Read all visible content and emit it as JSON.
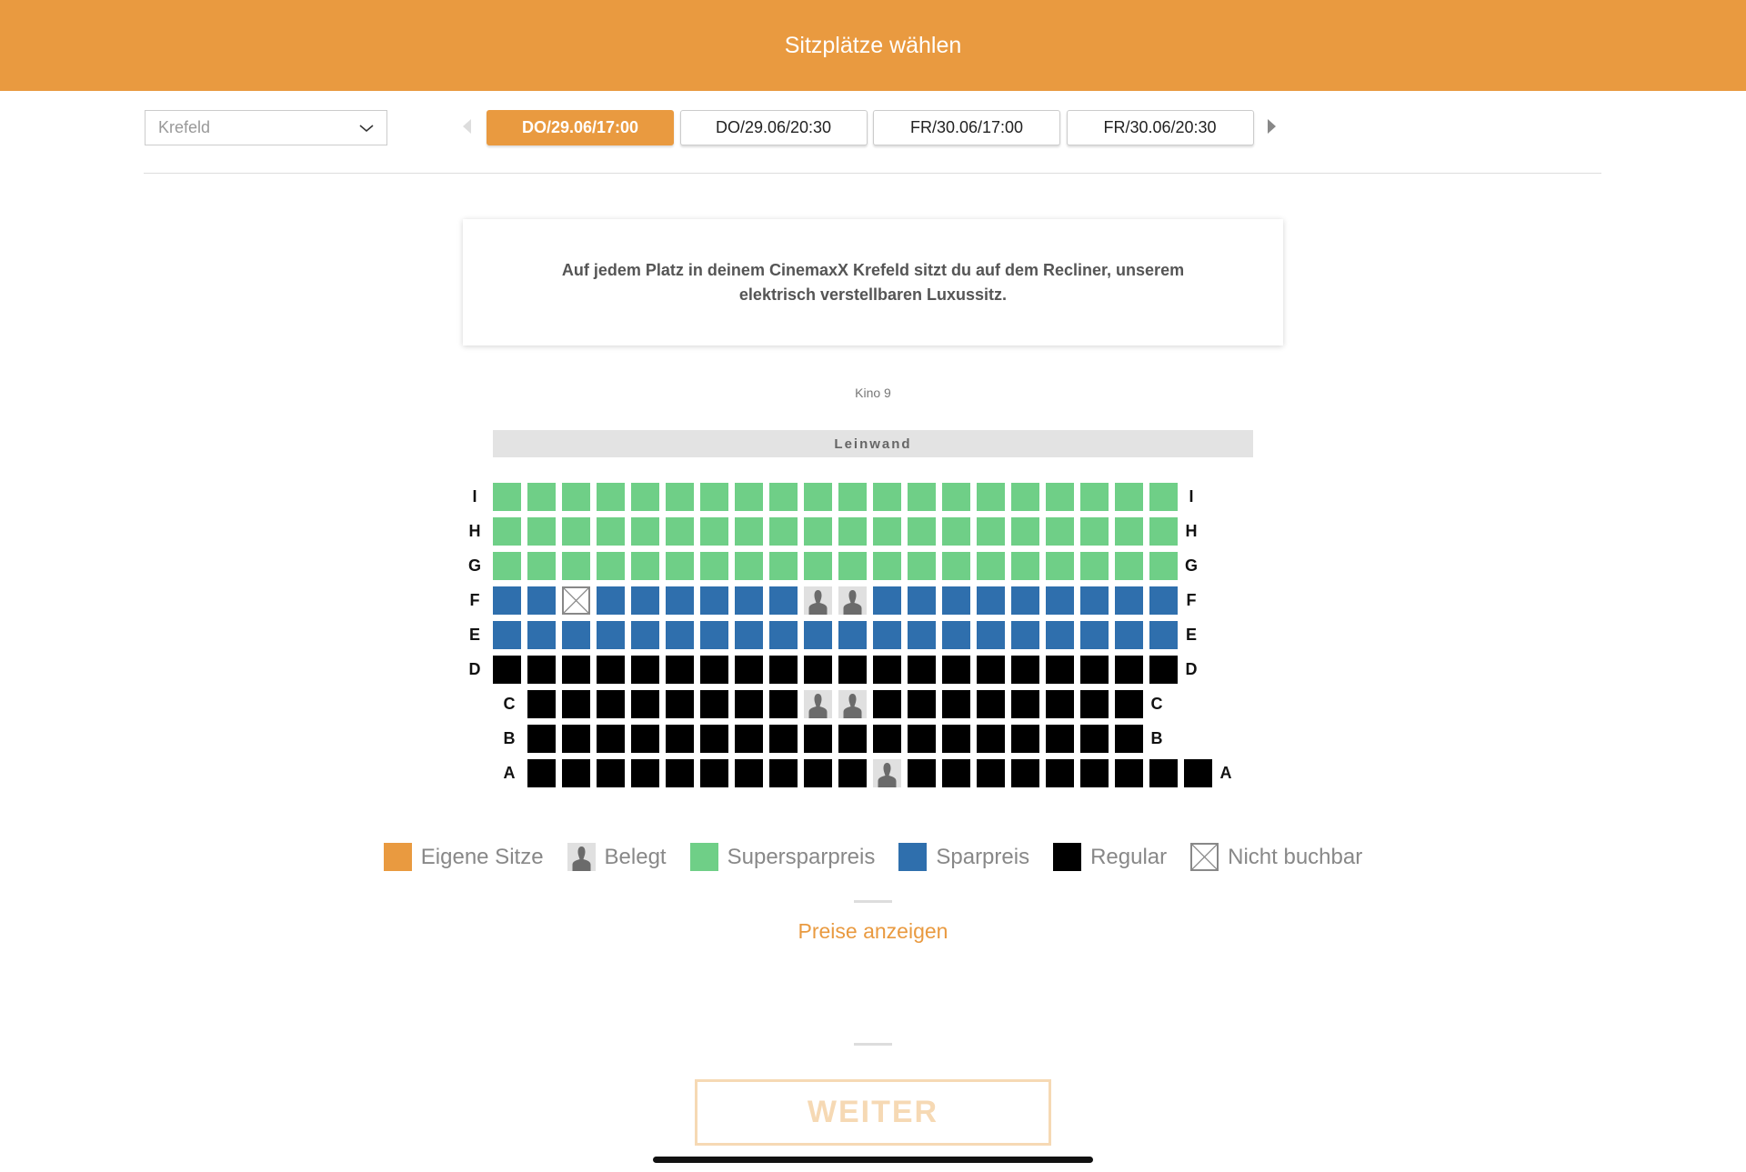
{
  "header": {
    "title": "Sitzplätze wählen"
  },
  "location_select": {
    "value": "Krefeld"
  },
  "showtimes": [
    {
      "label": "DO/29.06/17:00",
      "active": true
    },
    {
      "label": "DO/29.06/20:30",
      "active": false
    },
    {
      "label": "FR/30.06/17:00",
      "active": false
    },
    {
      "label": "FR/30.06/20:30",
      "active": false
    }
  ],
  "info_text": "Auf jedem Platz in deinem CinemaxX Krefeld sitzt du auf dem Recliner, unserem elektrisch verstellbaren Luxussitz.",
  "hall": "Kino 9",
  "screen_label": "Leinwand",
  "seat_legend_key": {
    "s": "Supersparpreis",
    "p": "Sparpreis",
    "r": "Regular",
    "o": "Belegt",
    "x": "Nicht buchbar",
    "_": "gap"
  },
  "rows": [
    {
      "label": "I",
      "seats": "ssssssssssssssssssss"
    },
    {
      "label": "H",
      "seats": "ssssssssssssssssssss"
    },
    {
      "label": "G",
      "seats": "ssssssssssssssssssss"
    },
    {
      "label": "F",
      "seats": "ppxppppppooppppppppp"
    },
    {
      "label": "E",
      "seats": "pppppppppppppppppppp"
    },
    {
      "label": "D",
      "seats": "rrrrrrrrrrrrrrrrrrrr"
    },
    {
      "label": "C",
      "seats": "_rrrrrrrroorrrrrrrr"
    },
    {
      "label": "B",
      "seats": "_rrrrrrrrrrrrrrrrrr"
    },
    {
      "label": "A",
      "seats": "_rrrrrrrrrrorrrrrrrrr"
    }
  ],
  "legend": [
    {
      "label": "Eigene Sitze",
      "type": "own"
    },
    {
      "label": "Belegt",
      "type": "o"
    },
    {
      "label": "Supersparpreis",
      "type": "s"
    },
    {
      "label": "Sparpreis",
      "type": "p"
    },
    {
      "label": "Regular",
      "type": "r"
    },
    {
      "label": "Nicht buchbar",
      "type": "x"
    }
  ],
  "colors": {
    "accent": "#e99a40",
    "supersparpreis": "#6fcf87",
    "sparpreis": "#2f6fad",
    "regular": "#000000",
    "belegt": "#e0e0e0"
  },
  "show_prices_link": "Preise anzeigen",
  "next_button": "WEITER"
}
